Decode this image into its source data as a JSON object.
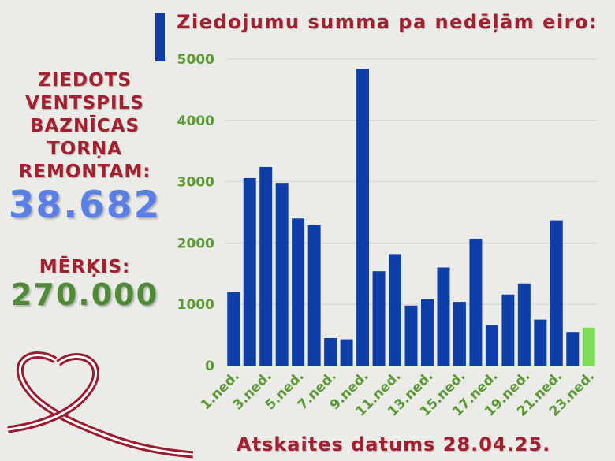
{
  "left_panel": {
    "donated_label": "ZIEDOTS\nVENTSPILS\nBAZNĪCAS\nTORŅA\nREMONTAM:",
    "donated_value": "38.682",
    "goal_label": "MĒRĶIS:",
    "goal_value": "270.000"
  },
  "footer": "Atskaites datums 28.04.25.",
  "colors": {
    "bar": "#0e3fa8",
    "bar_current": "#7dde55",
    "tick_label": "#5c9a37",
    "title": "#a32030",
    "donated_value": "#5b7fe8",
    "goal_value": "#4f8a35",
    "background": "#ebebe7"
  },
  "chart_data": {
    "type": "bar",
    "title": "Ziedojumu summa pa nedēļām eiro:",
    "categories": [
      "1.ned.",
      "2.ned.",
      "3.ned.",
      "4.ned.",
      "5.ned.",
      "6.ned.",
      "7.ned.",
      "8.ned.",
      "9.ned.",
      "10.ned.",
      "11.ned.",
      "12.ned.",
      "13.ned.",
      "14.ned.",
      "15.ned.",
      "16.ned.",
      "17.ned.",
      "18.ned.",
      "19.ned.",
      "20.ned.",
      "21.ned.",
      "22.ned.",
      "23.ned."
    ],
    "x_tick_labels": [
      "1.ned.",
      "3.ned.",
      "5.ned.",
      "7.ned.",
      "9.ned.",
      "11.ned.",
      "13.ned.",
      "15.ned.",
      "17.ned.",
      "19.ned.",
      "21.ned.",
      "23.ned."
    ],
    "values": [
      1200,
      3060,
      3240,
      2980,
      2400,
      2290,
      450,
      430,
      4840,
      1540,
      1820,
      980,
      1080,
      1600,
      1040,
      2070,
      660,
      1160,
      1340,
      750,
      2370,
      550,
      620
    ],
    "highlighted_index": 22,
    "ylim": [
      0,
      5000
    ],
    "y_ticks": [
      0,
      1000,
      2000,
      3000,
      4000,
      5000
    ],
    "grid": true,
    "legend": "none"
  }
}
